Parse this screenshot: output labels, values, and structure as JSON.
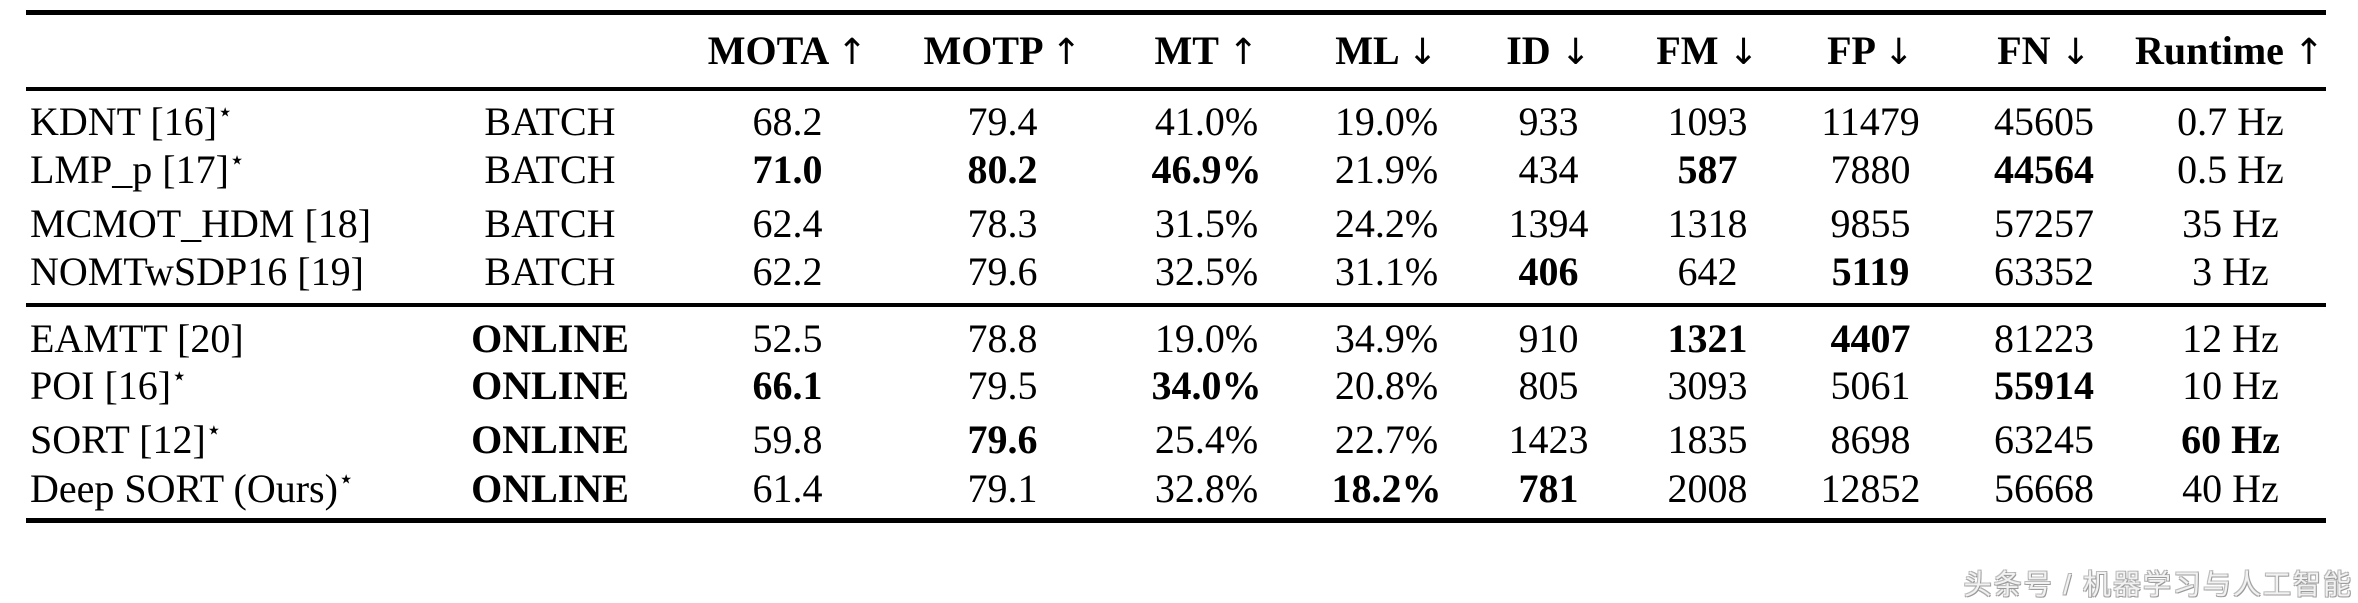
{
  "table": {
    "star_symbol": "⋆",
    "columns": [
      {
        "key": "method",
        "label": "",
        "arrow": ""
      },
      {
        "key": "mode",
        "label": "",
        "arrow": ""
      },
      {
        "key": "mota",
        "label": "MOTA",
        "arrow": "↑"
      },
      {
        "key": "motp",
        "label": "MOTP",
        "arrow": "↑"
      },
      {
        "key": "mt",
        "label": "MT",
        "arrow": "↑"
      },
      {
        "key": "ml",
        "label": "ML",
        "arrow": "↓"
      },
      {
        "key": "id",
        "label": "ID",
        "arrow": "↓"
      },
      {
        "key": "fm",
        "label": "FM",
        "arrow": "↓"
      },
      {
        "key": "fp",
        "label": "FP",
        "arrow": "↓"
      },
      {
        "key": "fn",
        "label": "FN",
        "arrow": "↓"
      },
      {
        "key": "runtime",
        "label": "Runtime",
        "arrow": "↑"
      }
    ],
    "sections": [
      {
        "name": "batch",
        "rows": [
          {
            "method": "KDNT [16]",
            "star": true,
            "mode": {
              "t": "BATCH",
              "b": false
            },
            "values": [
              {
                "t": "68.2",
                "b": false
              },
              {
                "t": "79.4",
                "b": false
              },
              {
                "t": "41.0%",
                "b": false
              },
              {
                "t": "19.0%",
                "b": false
              },
              {
                "t": "933",
                "b": false
              },
              {
                "t": "1093",
                "b": false
              },
              {
                "t": "11479",
                "b": false
              },
              {
                "t": "45605",
                "b": false
              },
              {
                "t": "0.7 Hz",
                "b": false
              }
            ]
          },
          {
            "method": "LMP_p [17]",
            "star": true,
            "mode": {
              "t": "BATCH",
              "b": false
            },
            "values": [
              {
                "t": "71.0",
                "b": true
              },
              {
                "t": "80.2",
                "b": true
              },
              {
                "t": "46.9%",
                "b": true
              },
              {
                "t": "21.9%",
                "b": false
              },
              {
                "t": "434",
                "b": false
              },
              {
                "t": "587",
                "b": true
              },
              {
                "t": "7880",
                "b": false
              },
              {
                "t": "44564",
                "b": true
              },
              {
                "t": "0.5 Hz",
                "b": false
              }
            ]
          },
          {
            "method": "MCMOT_HDM [18]",
            "star": false,
            "mode": {
              "t": "BATCH",
              "b": false
            },
            "values": [
              {
                "t": "62.4",
                "b": false
              },
              {
                "t": "78.3",
                "b": false
              },
              {
                "t": "31.5%",
                "b": false
              },
              {
                "t": "24.2%",
                "b": false
              },
              {
                "t": "1394",
                "b": false
              },
              {
                "t": "1318",
                "b": false
              },
              {
                "t": "9855",
                "b": false
              },
              {
                "t": "57257",
                "b": false
              },
              {
                "t": "35 Hz",
                "b": false
              }
            ]
          },
          {
            "method": "NOMTwSDP16 [19]",
            "star": false,
            "mode": {
              "t": "BATCH",
              "b": false
            },
            "values": [
              {
                "t": "62.2",
                "b": false
              },
              {
                "t": "79.6",
                "b": false
              },
              {
                "t": "32.5%",
                "b": false
              },
              {
                "t": "31.1%",
                "b": false
              },
              {
                "t": "406",
                "b": true
              },
              {
                "t": "642",
                "b": false
              },
              {
                "t": "5119",
                "b": true
              },
              {
                "t": "63352",
                "b": false
              },
              {
                "t": "3 Hz",
                "b": false
              }
            ]
          }
        ]
      },
      {
        "name": "online",
        "rows": [
          {
            "method": "EAMTT [20]",
            "star": false,
            "mode": {
              "t": "ONLINE",
              "b": true
            },
            "values": [
              {
                "t": "52.5",
                "b": false
              },
              {
                "t": "78.8",
                "b": false
              },
              {
                "t": "19.0%",
                "b": false
              },
              {
                "t": "34.9%",
                "b": false
              },
              {
                "t": "910",
                "b": false
              },
              {
                "t": "1321",
                "b": true
              },
              {
                "t": "4407",
                "b": true
              },
              {
                "t": "81223",
                "b": false
              },
              {
                "t": "12 Hz",
                "b": false
              }
            ]
          },
          {
            "method": "POI [16]",
            "star": true,
            "mode": {
              "t": "ONLINE",
              "b": true
            },
            "values": [
              {
                "t": "66.1",
                "b": true
              },
              {
                "t": "79.5",
                "b": false
              },
              {
                "t": "34.0%",
                "b": true
              },
              {
                "t": "20.8%",
                "b": false
              },
              {
                "t": "805",
                "b": false
              },
              {
                "t": "3093",
                "b": false
              },
              {
                "t": "5061",
                "b": false
              },
              {
                "t": "55914",
                "b": true
              },
              {
                "t": "10 Hz",
                "b": false
              }
            ]
          },
          {
            "method": "SORT [12]",
            "star": true,
            "mode": {
              "t": "ONLINE",
              "b": true
            },
            "values": [
              {
                "t": "59.8",
                "b": false
              },
              {
                "t": "79.6",
                "b": true
              },
              {
                "t": "25.4%",
                "b": false
              },
              {
                "t": "22.7%",
                "b": false
              },
              {
                "t": "1423",
                "b": false
              },
              {
                "t": "1835",
                "b": false
              },
              {
                "t": "8698",
                "b": false
              },
              {
                "t": "63245",
                "b": false
              },
              {
                "t": "60 Hz",
                "b": true
              }
            ]
          },
          {
            "method": "Deep SORT (Ours)",
            "star": true,
            "mode": {
              "t": "ONLINE",
              "b": true
            },
            "values": [
              {
                "t": "61.4",
                "b": false
              },
              {
                "t": "79.1",
                "b": false
              },
              {
                "t": "32.8%",
                "b": false
              },
              {
                "t": "18.2%",
                "b": true
              },
              {
                "t": "781",
                "b": true
              },
              {
                "t": "2008",
                "b": false
              },
              {
                "t": "12852",
                "b": false
              },
              {
                "t": "56668",
                "b": false
              },
              {
                "t": "40 Hz",
                "b": false
              }
            ]
          }
        ]
      }
    ]
  },
  "watermark": {
    "text": "头条号 / 机器学习与人工智能"
  },
  "colors": {
    "text": "#000000",
    "background": "#ffffff",
    "rule": "#000000",
    "watermark": "#c9c9c9"
  }
}
